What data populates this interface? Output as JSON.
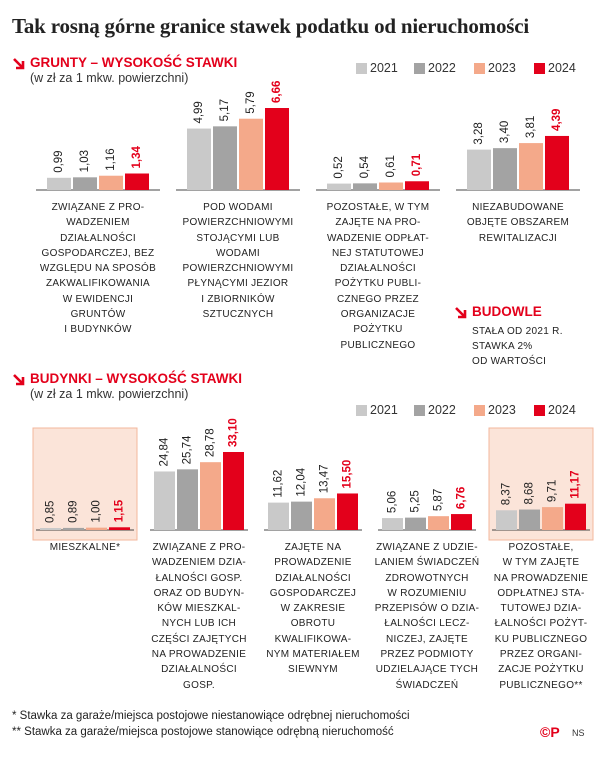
{
  "title": "Tak rosną górne granice stawek podatku od nieruchomości",
  "chart_data": [
    {
      "type": "bar",
      "title": "GRUNTY – WYSOKOŚĆ STAWKI",
      "subtitle": "(w zł za 1 mkw. powierzchni)",
      "categories": [
        "ZWIĄZANE Z PRO-\nWADZENIEM\nDZIAŁALNOŚCI\nGOSPODARCZEJ, BEZ\nWZGLĘDU NA SPOSÓB\nZAKWALIFIKOWANIA\nW EWIDENCJI\nGRUNTÓW\nI BUDYNKÓW",
        "POD WODAMI\nPOWIERZCHNIOWYMI\nSTOJĄCYMI LUB\nWODAMI\nPOWIERZCHNIOWYMI\nPŁYNĄCYMI JEZIOR\nI ZBIORNIKÓW\nSZTUCZNYCH",
        "POZOSTAŁE, W TYM\nZAJĘTE NA PRO-\nWADZENIE ODPŁAT-\nNEJ STATUTOWEJ\nDZIAŁALNOŚCI\nPOŻYTKU PUBLI-\nCZNEGO PRZEZ\nORGANIZACJE\nPOŻYTKU\nPUBLICZNEGO",
        "NIEZABUDOWANE\nOBJĘTE OBSZAREM\nREWITALIZACJI"
      ],
      "series": [
        {
          "name": "2021",
          "color": "#c9c9c9",
          "values": [
            0.99,
            4.99,
            0.52,
            3.28
          ],
          "value_labels": [
            "0,99",
            "4,99",
            "0,52",
            "3,28"
          ]
        },
        {
          "name": "2022",
          "color": "#a3a3a3",
          "values": [
            1.03,
            5.17,
            0.54,
            3.4
          ],
          "value_labels": [
            "1,03",
            "5,17",
            "0,54",
            "3,40"
          ]
        },
        {
          "name": "2023",
          "color": "#f4a98a",
          "values": [
            1.16,
            5.79,
            0.61,
            3.81
          ],
          "value_labels": [
            "1,16",
            "5,79",
            "0,61",
            "3,81"
          ]
        },
        {
          "name": "2024",
          "color": "#e3001b",
          "values": [
            1.34,
            6.66,
            0.71,
            4.39
          ],
          "value_labels": [
            "1,34",
            "6,66",
            "0,71",
            "4,39"
          ]
        }
      ]
    },
    {
      "type": "bar",
      "title": "BUDYNKI – WYSOKOŚĆ STAWKI",
      "subtitle": "(w zł za 1 mkw. powierzchni)",
      "categories": [
        "MIESZKALNE*",
        "ZWIĄZANE Z PRO-\nWADZENIEM DZIA-\nŁALNOŚCI GOSP.\nORAZ OD BUDYN-\nKÓW MIESZKAL-\nNYCH LUB ICH\nCZĘŚCI ZAJĘTYCH\nNA PROWADZENIE\nDZIAŁALNOŚCI\nGOSP.",
        "ZAJĘTE NA\nPROWADZENIE\nDZIAŁALNOŚCI\nGOSPODARCZEJ\nW ZAKRESIE\nOBROTU\nKWALIFIKOWA-\nNYM MATERIAŁEM\nSIEWNYM",
        "ZWIĄZANE Z UDZIE-\nLANIEM ŚWIADCZEŃ\nZDROWOTNYCH\nW ROZUMIENIU\nPRZEPISÓW O DZIA-\nŁALNOŚCI LECZ-\nNICZEJ, ZAJĘTE\nPRZEZ PODMIOTY\nUDZIELAJĄCE TYCH\nŚWIADCZEŃ",
        "POZOSTAŁE,\nW TYM ZAJĘTE\nNA PROWADZENIE\nODPŁATNEJ STA-\nTUTOWEJ DZIA-\nŁALNOŚCI POŻYT-\nKU PUBLICZNEGO\nPRZEZ ORGANI-\nZACJE POŻYTKU\nPUBLICZNEGO**"
      ],
      "highlight_categories": [
        0,
        4
      ],
      "series": [
        {
          "name": "2021",
          "color": "#c9c9c9",
          "values": [
            0.85,
            24.84,
            11.62,
            5.06,
            8.37
          ],
          "value_labels": [
            "0,85",
            "24,84",
            "11,62",
            "5,06",
            "8,37"
          ]
        },
        {
          "name": "2022",
          "color": "#a3a3a3",
          "values": [
            0.89,
            25.74,
            12.04,
            5.25,
            8.68
          ],
          "value_labels": [
            "0,89",
            "25,74",
            "12,04",
            "5,25",
            "8,68"
          ]
        },
        {
          "name": "2023",
          "color": "#f4a98a",
          "values": [
            1.0,
            28.78,
            13.47,
            5.87,
            9.71
          ],
          "value_labels": [
            "1,00",
            "28,78",
            "13,47",
            "5,87",
            "9,71"
          ]
        },
        {
          "name": "2024",
          "color": "#e3001b",
          "values": [
            1.15,
            33.1,
            15.5,
            6.76,
            11.17
          ],
          "value_labels": [
            "1,15",
            "33,10",
            "15,50",
            "6,76",
            "11,17"
          ]
        }
      ]
    }
  ],
  "budowle": {
    "title": "BUDOWLE",
    "text": "STAŁA OD 2021 R.\nSTAWKA 2%\nOD WARTOŚCI"
  },
  "footnotes": [
    "* Stawka za garaże/miejsca postojowe niestanowiące odrębnej nieruchomości",
    "** Stawka za garaże/miejsca postojowe stanowiące odrębną nieruchomość"
  ],
  "logo": "©P",
  "credit": "NS"
}
